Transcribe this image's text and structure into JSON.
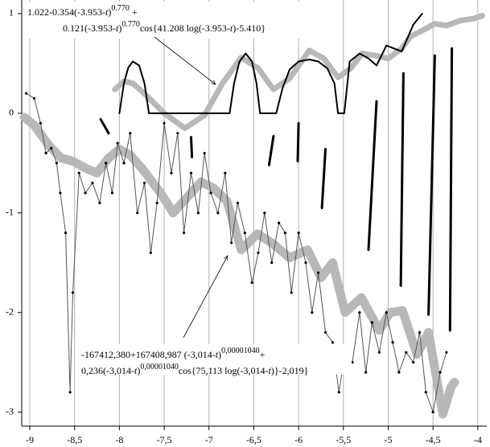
{
  "chart_data": {
    "type": "line",
    "xlim": [
      -9.09,
      -3.9
    ],
    "ylim": [
      -3.14,
      1.137
    ],
    "xticks": [
      -9,
      {
        "value": -8.5,
        "label": "-8,5"
      },
      -8,
      {
        "value": -7.5,
        "label": "-7,5"
      },
      -7,
      {
        "value": -6.5,
        "label": "-6,5"
      },
      -6,
      {
        "value": -5.5,
        "label": "-5,5"
      },
      -5,
      {
        "value": -4.5,
        "label": "-4,5"
      },
      -4
    ],
    "yticks": [
      -3,
      -2,
      -1,
      0,
      1
    ],
    "grid": true,
    "series": [
      {
        "color": "#b8b8b8",
        "width": 7,
        "x": [
          -8.05,
          -7.95,
          -7.85,
          -7.7,
          -7.5,
          -7.27,
          -7.05,
          -6.85,
          -6.64,
          -6.45,
          -6.28,
          -6.1,
          -5.88,
          -5.72,
          -5.56,
          -5.42,
          -5.29,
          -5.15,
          -5.0,
          -4.85,
          -4.75,
          -4.6,
          -4.48,
          -4.35,
          -4.2,
          -4.05,
          -3.95
        ],
        "values": [
          0.24,
          0.32,
          0.3,
          0.18,
          0.0,
          -0.15,
          -0.02,
          0.3,
          0.56,
          0.45,
          0.24,
          0.35,
          0.63,
          0.55,
          0.36,
          0.45,
          0.6,
          0.58,
          0.55,
          0.65,
          0.77,
          0.84,
          0.9,
          0.88,
          0.93,
          0.95,
          0.98
        ]
      },
      {
        "color": "#b8b8b8",
        "width": 11,
        "x": [
          -9.06,
          -8.95,
          -8.79,
          -8.65,
          -8.52,
          -8.38,
          -8.25,
          -8.12,
          -8.0,
          -7.88,
          -7.75,
          -7.54,
          -7.4,
          -7.25,
          -7.09,
          -6.95,
          -6.8,
          -6.64,
          -6.46,
          -6.3,
          -6.1,
          -5.9,
          -5.75,
          -5.62,
          -5.48,
          -5.3,
          -5.1,
          -4.98,
          -4.84,
          -4.68,
          -4.55,
          -4.39,
          -4.3,
          -4.26
        ],
        "values": [
          -0.04,
          -0.12,
          -0.32,
          -0.45,
          -0.48,
          -0.55,
          -0.6,
          -0.45,
          -0.36,
          -0.42,
          -0.55,
          -0.8,
          -1.0,
          -0.85,
          -0.69,
          -0.75,
          -0.88,
          -1.37,
          -1.21,
          -1.3,
          -1.45,
          -1.37,
          -1.65,
          -1.5,
          -2.0,
          -1.85,
          -2.18,
          -2.0,
          -1.98,
          -2.42,
          -2.2,
          -3.02,
          -2.75,
          -2.7
        ]
      },
      {
        "color": "#000000",
        "width": 2,
        "x": [
          -8.0,
          -7.95,
          -7.9,
          -7.85,
          -7.78,
          -7.72,
          -7.67,
          -6.77,
          -6.72,
          -6.66,
          -6.59,
          -6.52,
          -6.47,
          -6.43,
          -6.25,
          -6.18,
          -6.1,
          -6.0,
          -5.88,
          -5.78,
          -5.68,
          -5.6,
          -5.56,
          -5.49,
          -5.43,
          -5.32,
          -5.22,
          -5.13,
          -5.02,
          -4.85,
          -4.72,
          -4.62
        ],
        "values": [
          0,
          0.3,
          0.46,
          0.52,
          0.48,
          0.3,
          0,
          0,
          0.3,
          0.52,
          0.6,
          0.52,
          0.3,
          0,
          0,
          0.25,
          0.44,
          0.52,
          0.54,
          0.52,
          0.45,
          0.3,
          0,
          0,
          0.52,
          0.6,
          0.55,
          0.48,
          0.68,
          0.62,
          0.89,
          1.0
        ]
      },
      {
        "color": "#555555",
        "width": 1,
        "dots": true,
        "x": [
          -9.04,
          -8.95,
          -8.88,
          -8.82,
          -8.76,
          -8.7,
          -8.66,
          -8.6,
          -8.55,
          -8.52,
          -8.45,
          -8.38,
          -8.3,
          -8.22,
          -8.15,
          -8.08,
          -8.02,
          -7.95,
          -7.88,
          -7.8,
          -7.72,
          -7.65,
          -7.58,
          -7.5,
          -7.42,
          -7.35,
          -7.28,
          -7.2,
          -7.12,
          -7.05,
          -6.98,
          -6.9,
          -6.82,
          -6.75,
          -6.68,
          -6.6,
          -6.52,
          -6.45,
          -6.38,
          -6.3,
          -6.22,
          -6.15,
          -6.08,
          -6.0,
          -5.92,
          -5.85,
          -5.78,
          -5.7,
          -5.62,
          -5.55,
          -5.48,
          -5.4,
          -5.32,
          -5.25,
          -5.18,
          -5.1,
          -5.02,
          -4.95,
          -4.88,
          -4.8,
          -4.72,
          -4.65,
          -4.58,
          -4.5,
          -4.42,
          -4.35
        ],
        "values": [
          0.2,
          0.15,
          -0.1,
          -0.4,
          -0.35,
          -0.5,
          -0.8,
          -1.2,
          -2.8,
          -1.8,
          -0.6,
          -0.8,
          -0.7,
          -0.9,
          -0.5,
          -0.8,
          -0.3,
          -0.5,
          -0.2,
          -1.0,
          -0.7,
          -1.4,
          -0.9,
          -0.1,
          -0.6,
          -0.2,
          -1.2,
          -0.6,
          -1.0,
          -0.4,
          -0.8,
          -1.0,
          -0.6,
          -1.3,
          -0.9,
          -1.2,
          -1.7,
          -1.4,
          -1.0,
          -1.5,
          -1.1,
          -1.2,
          -1.8,
          -1.2,
          -1.5,
          -2.0,
          -1.6,
          -2.2,
          -2.3,
          -2.8,
          -2.4,
          -2.5,
          -2.0,
          -2.6,
          -2.1,
          -2.4,
          -2.0,
          -2.3,
          -2.6,
          -2.4,
          -2.5,
          -2.2,
          -2.8,
          -3.0,
          -2.6,
          -2.4
        ]
      },
      {
        "color": "#000000",
        "width": 3,
        "x": [
          -8.21,
          -8.12
        ],
        "values": [
          -0.06,
          -0.2
        ]
      },
      {
        "color": "#000000",
        "width": 3,
        "x": [
          -7.2,
          -7.19
        ],
        "values": [
          -0.24,
          -0.44
        ]
      },
      {
        "color": "#000000",
        "width": 3,
        "x": [
          -6.28,
          -6.33
        ],
        "values": [
          -0.23,
          -0.52
        ]
      },
      {
        "color": "#000000",
        "width": 3,
        "x": [
          -6.0,
          -6.01
        ],
        "values": [
          -0.1,
          -0.48
        ]
      },
      {
        "color": "#000000",
        "width": 3,
        "x": [
          -5.7,
          -5.74
        ],
        "values": [
          -0.36,
          -0.95
        ]
      },
      {
        "color": "#000000",
        "width": 3,
        "x": [
          -5.13,
          -5.22
        ],
        "values": [
          0.12,
          -1.37
        ]
      },
      {
        "color": "#000000",
        "width": 3,
        "x": [
          -4.83,
          -4.86
        ],
        "values": [
          0.4,
          -1.73
        ]
      },
      {
        "color": "#000000",
        "width": 3,
        "x": [
          -4.48,
          -4.55
        ],
        "values": [
          0.58,
          -2.02
        ]
      },
      {
        "color": "#000000",
        "width": 3,
        "x": [
          -4.29,
          -4.31
        ],
        "values": [
          0.65,
          -2.18
        ]
      }
    ],
    "annotations": [
      {
        "lines": [
          [
            {
              "t": "1.022-0.354(-3.953-"
            },
            {
              "t": "t",
              "i": true
            },
            {
              "t": ")"
            },
            {
              "t": "0.770",
              "sup": true
            },
            {
              "t": " +"
            }
          ],
          [
            {
              "t": "0.121(-3.953-"
            },
            {
              "t": "t",
              "i": true
            },
            {
              "t": ")"
            },
            {
              "t": "0.770",
              "sup": true
            },
            {
              "t": "cos{41.208 log(-3.953-"
            },
            {
              "t": "t",
              "i": true
            },
            {
              "t": ")-5.410}"
            }
          ]
        ]
      },
      {
        "lines": [
          [
            {
              "t": "-167412,380+167408,987 (-3,014-"
            },
            {
              "t": "t",
              "i": true
            },
            {
              "t": ")"
            },
            {
              "t": "0,00001040",
              "sup": true
            },
            {
              "t": "+"
            }
          ],
          [
            {
              "t": "0,236(-3,014-"
            },
            {
              "t": "t",
              "i": true
            },
            {
              "t": ")"
            },
            {
              "t": "0,00001040",
              "sup": true
            },
            {
              "t": "cos{75,113 log(-3,014-"
            },
            {
              "t": "t",
              "i": true
            },
            {
              "t": ")}-2,019}"
            }
          ]
        ]
      }
    ]
  }
}
